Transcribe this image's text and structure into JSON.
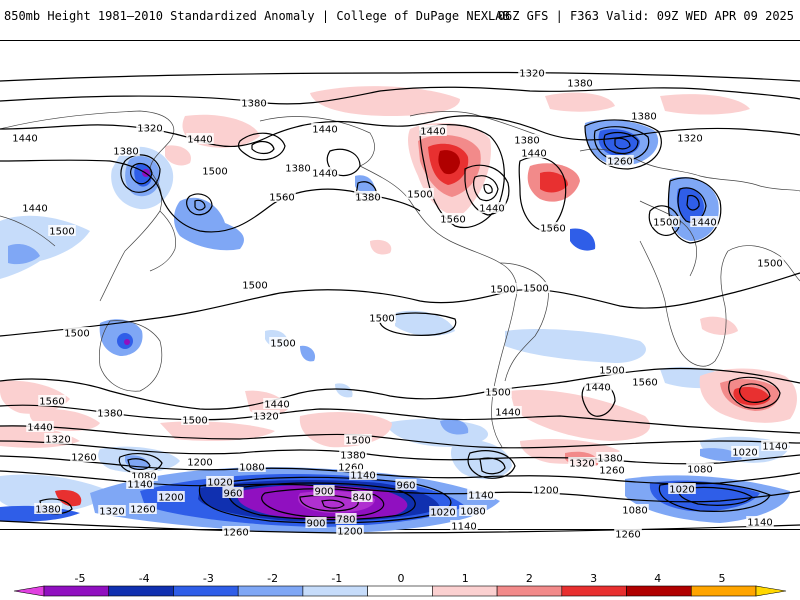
{
  "header": {
    "title_left": "850mb Height 1981–2010 Standardized Anomaly | College of DuPage NEXLAB",
    "title_right": "06Z GFS | F363 Valid: 09Z WED APR 09 2025"
  },
  "contour_labels": [
    {
      "text": "1320",
      "lx": 532,
      "ly": 72
    },
    {
      "text": "1380",
      "lx": 580,
      "ly": 82
    },
    {
      "text": "1380",
      "lx": 254,
      "ly": 102
    },
    {
      "text": "1320",
      "lx": 150,
      "ly": 127
    },
    {
      "text": "1440",
      "lx": 25,
      "ly": 137
    },
    {
      "text": "1440",
      "lx": 200,
      "ly": 138
    },
    {
      "text": "1440",
      "lx": 325,
      "ly": 128
    },
    {
      "text": "1440",
      "lx": 433,
      "ly": 130
    },
    {
      "text": "1380",
      "lx": 527,
      "ly": 139
    },
    {
      "text": "1440",
      "lx": 534,
      "ly": 152
    },
    {
      "text": "1380",
      "lx": 644,
      "ly": 115
    },
    {
      "text": "1320",
      "lx": 690,
      "ly": 137
    },
    {
      "text": "1260",
      "lx": 620,
      "ly": 160
    },
    {
      "text": "1380",
      "lx": 126,
      "ly": 150
    },
    {
      "text": "1500",
      "lx": 215,
      "ly": 170
    },
    {
      "text": "1380",
      "lx": 298,
      "ly": 167
    },
    {
      "text": "1440",
      "lx": 325,
      "ly": 172
    },
    {
      "text": "1560",
      "lx": 282,
      "ly": 196
    },
    {
      "text": "1380",
      "lx": 368,
      "ly": 196
    },
    {
      "text": "1500",
      "lx": 420,
      "ly": 193
    },
    {
      "text": "1440",
      "lx": 35,
      "ly": 207
    },
    {
      "text": "1500",
      "lx": 62,
      "ly": 230
    },
    {
      "text": "1560",
      "lx": 453,
      "ly": 218
    },
    {
      "text": "1440",
      "lx": 492,
      "ly": 207
    },
    {
      "text": "1560",
      "lx": 553,
      "ly": 227
    },
    {
      "text": "1500",
      "lx": 666,
      "ly": 221
    },
    {
      "text": "1440",
      "lx": 704,
      "ly": 221
    },
    {
      "text": "1500",
      "lx": 770,
      "ly": 262
    },
    {
      "text": "1500",
      "lx": 255,
      "ly": 284
    },
    {
      "text": "1500",
      "lx": 503,
      "ly": 288
    },
    {
      "text": "1500",
      "lx": 536,
      "ly": 287
    },
    {
      "text": "1500",
      "lx": 382,
      "ly": 317
    },
    {
      "text": "1500",
      "lx": 77,
      "ly": 332
    },
    {
      "text": "1500",
      "lx": 283,
      "ly": 342
    },
    {
      "text": "1500",
      "lx": 612,
      "ly": 369
    },
    {
      "text": "1440",
      "lx": 598,
      "ly": 386
    },
    {
      "text": "1560",
      "lx": 645,
      "ly": 381
    },
    {
      "text": "1500",
      "lx": 498,
      "ly": 391
    },
    {
      "text": "1560",
      "lx": 52,
      "ly": 400
    },
    {
      "text": "1440",
      "lx": 277,
      "ly": 403
    },
    {
      "text": "1380",
      "lx": 110,
      "ly": 412
    },
    {
      "text": "1320",
      "lx": 266,
      "ly": 415
    },
    {
      "text": "1500",
      "lx": 195,
      "ly": 419
    },
    {
      "text": "1440",
      "lx": 508,
      "ly": 411
    },
    {
      "text": "1440",
      "lx": 40,
      "ly": 426
    },
    {
      "text": "1320",
      "lx": 58,
      "ly": 438
    },
    {
      "text": "1500",
      "lx": 358,
      "ly": 439
    },
    {
      "text": "1140",
      "lx": 775,
      "ly": 445
    },
    {
      "text": "1380",
      "lx": 353,
      "ly": 454
    },
    {
      "text": "1020",
      "lx": 745,
      "ly": 451
    },
    {
      "text": "1260",
      "lx": 84,
      "ly": 456
    },
    {
      "text": "1200",
      "lx": 200,
      "ly": 461
    },
    {
      "text": "1380",
      "lx": 610,
      "ly": 457
    },
    {
      "text": "1320",
      "lx": 582,
      "ly": 462
    },
    {
      "text": "1260",
      "lx": 351,
      "ly": 466
    },
    {
      "text": "1260",
      "lx": 612,
      "ly": 469
    },
    {
      "text": "1080",
      "lx": 700,
      "ly": 468
    },
    {
      "text": "1080",
      "lx": 144,
      "ly": 475
    },
    {
      "text": "1140",
      "lx": 363,
      "ly": 474
    },
    {
      "text": "1080",
      "lx": 252,
      "ly": 466
    },
    {
      "text": "1020",
      "lx": 220,
      "ly": 481
    },
    {
      "text": "1140",
      "lx": 140,
      "ly": 483
    },
    {
      "text": "1200",
      "lx": 546,
      "ly": 489
    },
    {
      "text": "1020",
      "lx": 682,
      "ly": 488
    },
    {
      "text": "900",
      "lx": 324,
      "ly": 490
    },
    {
      "text": "960",
      "lx": 406,
      "ly": 484
    },
    {
      "text": "960",
      "lx": 233,
      "ly": 492
    },
    {
      "text": "840",
      "lx": 362,
      "ly": 496
    },
    {
      "text": "1200",
      "lx": 171,
      "ly": 496
    },
    {
      "text": "1140",
      "lx": 481,
      "ly": 494
    },
    {
      "text": "1380",
      "lx": 48,
      "ly": 508
    },
    {
      "text": "1320",
      "lx": 112,
      "ly": 510
    },
    {
      "text": "1260",
      "lx": 143,
      "ly": 508
    },
    {
      "text": "1020",
      "lx": 443,
      "ly": 511
    },
    {
      "text": "1080",
      "lx": 473,
      "ly": 510
    },
    {
      "text": "1080",
      "lx": 635,
      "ly": 509
    },
    {
      "text": "780",
      "lx": 346,
      "ly": 518
    },
    {
      "text": "900",
      "lx": 316,
      "ly": 522
    },
    {
      "text": "1140",
      "lx": 464,
      "ly": 525
    },
    {
      "text": "1140",
      "lx": 760,
      "ly": 521
    },
    {
      "text": "1260",
      "lx": 236,
      "ly": 531
    },
    {
      "text": "1200",
      "lx": 350,
      "ly": 530
    },
    {
      "text": "1260",
      "lx": 628,
      "ly": 533
    }
  ],
  "colorbar": {
    "ticks": [
      "-5",
      "-4",
      "-3",
      "-2",
      "-1",
      "0",
      "1",
      "2",
      "3",
      "4",
      "5"
    ],
    "colors": [
      "#e040e0",
      "#9010c0",
      "#1030b0",
      "#2f5ee8",
      "#7fa7f5",
      "#c6dcfa",
      "#ffffff",
      "#fbd0d0",
      "#f28a8a",
      "#e83030",
      "#b00000",
      "#ffa500",
      "#ffd700"
    ]
  }
}
